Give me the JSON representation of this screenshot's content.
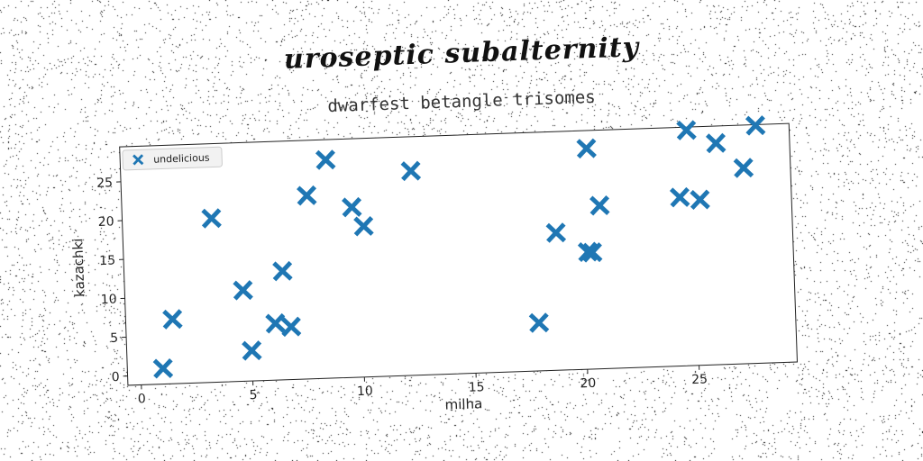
{
  "figure": {
    "suptitle": "uroseptic subalternity"
  },
  "chart_data": {
    "type": "scatter",
    "title": "dwarfest betangle trisomes",
    "xlabel": "milha",
    "ylabel": "kazachki",
    "xlim": [
      -0.6,
      29.4
    ],
    "ylim": [
      -1.2,
      29.5
    ],
    "xticks": [
      "0",
      "5",
      "10",
      "15",
      "20",
      "25"
    ],
    "yticks": [
      "0",
      "5",
      "10",
      "15",
      "20",
      "25"
    ],
    "xtick_values": [
      0,
      5,
      10,
      15,
      20,
      25
    ],
    "ytick_values": [
      0,
      5,
      10,
      15,
      20,
      25
    ],
    "grid": false,
    "legend": {
      "position": "upper left",
      "entries": [
        "undelicious"
      ]
    },
    "marker": "X",
    "color": "#1f77b4",
    "series": [
      {
        "name": "undelicious",
        "x": [
          1.0,
          1.5,
          3.4,
          4.7,
          5.0,
          6.1,
          6.5,
          6.8,
          7.7,
          8.6,
          9.7,
          10.2,
          12.4,
          17.9,
          18.8,
          20.2,
          20.3,
          20.4,
          20.8,
          24.4,
          24.8,
          25.3,
          26.1,
          27.3,
          27.9
        ],
        "y": [
          0.8,
          7.1,
          19.9,
          10.5,
          2.7,
          6.1,
          12.8,
          5.6,
          22.4,
          26.9,
          20.7,
          18.2,
          25.1,
          5.0,
          16.5,
          13.9,
          27.2,
          13.8,
          19.8,
          20.5,
          29.1,
          20.1,
          27.3,
          24.0,
          29.4
        ]
      }
    ]
  }
}
